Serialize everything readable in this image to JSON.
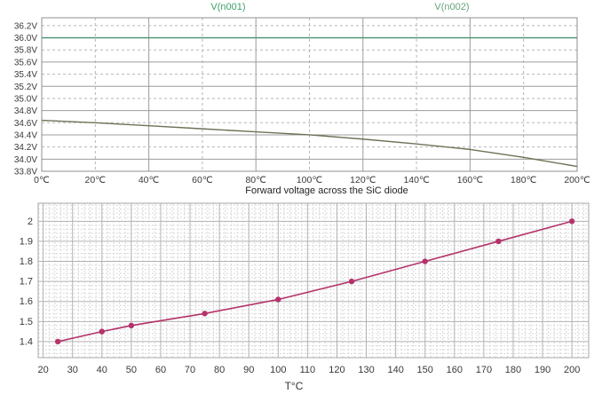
{
  "page": {
    "background": "#ffffff"
  },
  "colors": {
    "grid_solid_top": "#9c9c9c",
    "grid_dashed_top": "#b6b6b6",
    "grid_major_bottom": "#b2b2b2",
    "grid_minor_bottom": "#d8d8d8",
    "border": "#8f8f8f",
    "axis_text": "#3a3a3a",
    "title_text": "#222222"
  },
  "chart_data": [
    {
      "type": "line",
      "title": "",
      "xlabel": "",
      "ylabel": "",
      "legend_position": "top",
      "legend_items": [
        {
          "label": "V(n001)",
          "color": "#3ba169"
        },
        {
          "label": "V(n002)",
          "color": "#69a37b"
        }
      ],
      "xlim": [
        0,
        200
      ],
      "ylim": [
        33.8,
        36.33
      ],
      "x_ticks": {
        "values": [
          0,
          20,
          40,
          60,
          80,
          100,
          120,
          140,
          160,
          180,
          200
        ],
        "labels": [
          "0℃",
          "20℃",
          "40℃",
          "60℃",
          "80℃",
          "100℃",
          "120℃",
          "140℃",
          "160℃",
          "180℃",
          "200℃"
        ]
      },
      "y_ticks": {
        "values": [
          36.2,
          36.0,
          35.8,
          35.6,
          35.4,
          35.2,
          35.0,
          34.8,
          34.6,
          34.4,
          34.2,
          34.0,
          33.8
        ],
        "labels": [
          "36.2V",
          "36.0V",
          "35.8V",
          "35.6V",
          "35.4V",
          "35.2V",
          "35.0V",
          "34.8V",
          "34.6V",
          "34.4V",
          "34.2V",
          "34.0V",
          "33.8V"
        ]
      },
      "grid": {
        "style": "alternating solid and dashed lines at every tick"
      },
      "series": [
        {
          "name": "V(n001)",
          "color": "#4e9472",
          "x": [
            0,
            200
          ],
          "y": [
            36.0,
            36.0
          ]
        },
        {
          "name": "V(n002)",
          "color": "#6e7155",
          "x": [
            0,
            20,
            40,
            60,
            80,
            100,
            120,
            140,
            160,
            180,
            200
          ],
          "y": [
            34.64,
            34.6,
            34.55,
            34.5,
            34.45,
            34.4,
            34.33,
            34.25,
            34.16,
            34.03,
            33.88
          ]
        }
      ]
    },
    {
      "type": "line",
      "title": "Forward voltage across the SiC diode",
      "xlabel": "T°C",
      "ylabel": "",
      "xlim": [
        18.3,
        205.7
      ],
      "ylim": [
        1.32,
        2.09
      ],
      "x_ticks": {
        "values": [
          20,
          30,
          40,
          50,
          60,
          70,
          80,
          90,
          100,
          110,
          120,
          130,
          140,
          150,
          160,
          170,
          180,
          190,
          200
        ],
        "labels": [
          "20",
          "30",
          "40",
          "50",
          "60",
          "70",
          "80",
          "90",
          "100",
          "110",
          "120",
          "130",
          "140",
          "150",
          "160",
          "170",
          "180",
          "190",
          "200"
        ]
      },
      "y_ticks": {
        "values": [
          1.4,
          1.5,
          1.6,
          1.7,
          1.8,
          1.9,
          2.0
        ],
        "labels": [
          "1.4",
          "1.5",
          "1.6",
          "1.7",
          "1.8",
          "1.9",
          "2"
        ]
      },
      "minor_grid": {
        "x_step": 2,
        "y_step": 0.02
      },
      "series": [
        {
          "name": "Forward voltage",
          "color": "#b5336a",
          "marker": "circle",
          "x": [
            25,
            40,
            50,
            75,
            100,
            125,
            150,
            175,
            200
          ],
          "y": [
            1.4,
            1.45,
            1.48,
            1.54,
            1.61,
            1.7,
            1.8,
            1.9,
            2.0
          ]
        }
      ]
    }
  ]
}
